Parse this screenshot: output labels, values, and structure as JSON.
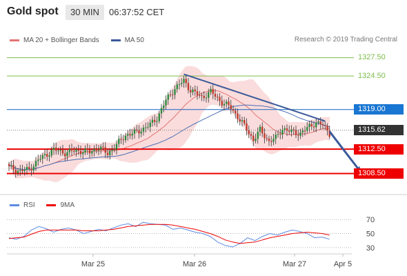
{
  "header": {
    "title": "Gold spot",
    "timeframe": "30 MIN",
    "time": "06:37:52 CET"
  },
  "legend": {
    "ma20": "MA 20 + Bollinger Bands",
    "ma50": "MA 50"
  },
  "credit": "Research © 2019 Trading Central",
  "rsi_legend": {
    "rsi": "RSI",
    "ma9": "9MA"
  },
  "colors": {
    "up": "#2a8a3a",
    "down": "#c0392b",
    "ma20": "#e57373",
    "band": "#f8d0d0",
    "ma50": "#4a6fb5",
    "trend": "#3b5998",
    "support": "#ee0000",
    "resistance": "#7cbd4b",
    "pivot": "#1565c0",
    "last": "#333333",
    "rsi": "#5b8be0",
    "rsi_ma": "#ee0000"
  },
  "chart_data": [
    {
      "type": "candlestick",
      "title": "Gold spot",
      "x_labels": [
        "Mar 25",
        "Mar 26",
        "Mar 27",
        "Apr 5"
      ],
      "ylim": [
        1305.5,
        1329.5
      ],
      "levels": [
        {
          "value": 1327.5,
          "label": "1327.50",
          "kind": "resistance"
        },
        {
          "value": 1324.5,
          "label": "1324.50",
          "kind": "resistance"
        },
        {
          "value": 1319.0,
          "label": "1319.00",
          "kind": "pivot"
        },
        {
          "value": 1315.62,
          "label": "1315.62",
          "kind": "last"
        },
        {
          "value": 1312.5,
          "label": "1312.50",
          "kind": "support"
        },
        {
          "value": 1308.5,
          "label": "1308.50",
          "kind": "support"
        }
      ],
      "trendline": [
        {
          "bar": 78,
          "value": 1324.8
        },
        {
          "bar": 141,
          "value": 1317.1
        }
      ],
      "forecast_arrow": [
        {
          "bar": 143,
          "value": 1315.4
        },
        {
          "bar": 157,
          "value": 1308.6
        }
      ],
      "anchors": [
        {
          "bar": 0,
          "value": 1309.5
        },
        {
          "bar": 5,
          "value": 1308.9
        },
        {
          "bar": 9,
          "value": 1309.2
        },
        {
          "bar": 14,
          "value": 1311.0
        },
        {
          "bar": 20,
          "value": 1312.4
        },
        {
          "bar": 25,
          "value": 1311.9
        },
        {
          "bar": 30,
          "value": 1312.3
        },
        {
          "bar": 36,
          "value": 1312.0
        },
        {
          "bar": 40,
          "value": 1312.8
        },
        {
          "bar": 44,
          "value": 1311.8
        },
        {
          "bar": 48,
          "value": 1313.2
        },
        {
          "bar": 52,
          "value": 1314.8
        },
        {
          "bar": 57,
          "value": 1315.3
        },
        {
          "bar": 63,
          "value": 1316.5
        },
        {
          "bar": 66,
          "value": 1317.6
        },
        {
          "bar": 70,
          "value": 1320.5
        },
        {
          "bar": 74,
          "value": 1322.5
        },
        {
          "bar": 78,
          "value": 1323.7
        },
        {
          "bar": 81,
          "value": 1322.2
        },
        {
          "bar": 86,
          "value": 1321.0
        },
        {
          "bar": 90,
          "value": 1321.9
        },
        {
          "bar": 95,
          "value": 1320.2
        },
        {
          "bar": 99,
          "value": 1319.3
        },
        {
          "bar": 102,
          "value": 1317.8
        },
        {
          "bar": 106,
          "value": 1315.8
        },
        {
          "bar": 109,
          "value": 1314.0
        },
        {
          "bar": 112,
          "value": 1315.6
        },
        {
          "bar": 116,
          "value": 1313.8
        },
        {
          "bar": 119,
          "value": 1314.3
        },
        {
          "bar": 122,
          "value": 1315.9
        },
        {
          "bar": 126,
          "value": 1315.3
        },
        {
          "bar": 130,
          "value": 1315.1
        },
        {
          "bar": 134,
          "value": 1316.2
        },
        {
          "bar": 137,
          "value": 1316.9
        },
        {
          "bar": 140,
          "value": 1316.4
        },
        {
          "bar": 143,
          "value": 1315.1
        }
      ]
    },
    {
      "type": "line",
      "title": "RSI",
      "ylim": [
        25,
        78
      ],
      "yticks": [
        70,
        50,
        30
      ],
      "series": [
        {
          "name": "RSI",
          "values": [
            44,
            42,
            46,
            55,
            60,
            57,
            52,
            56,
            58,
            55,
            50,
            53,
            56,
            54,
            58,
            62,
            64,
            60,
            66,
            64,
            63,
            62,
            56,
            58,
            55,
            52,
            50,
            46,
            38,
            33,
            31,
            36,
            44,
            40,
            46,
            50,
            48,
            52,
            55,
            53,
            50,
            44,
            45,
            42
          ]
        },
        {
          "name": "9MA",
          "values": [
            43,
            44,
            45,
            49,
            53,
            55,
            55,
            55,
            55,
            55,
            54,
            54,
            54,
            55,
            56,
            58,
            60,
            61,
            62,
            63,
            63,
            63,
            62,
            60,
            58,
            56,
            53,
            50,
            46,
            41,
            38,
            36,
            37,
            38,
            41,
            44,
            46,
            48,
            50,
            51,
            52,
            51,
            50,
            48
          ]
        }
      ]
    }
  ]
}
